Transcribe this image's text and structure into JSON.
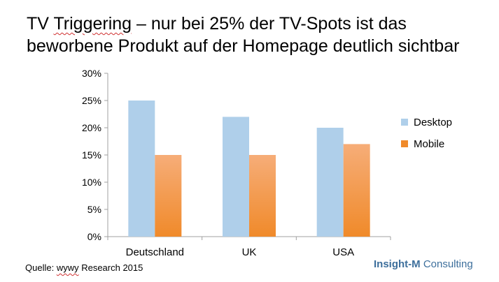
{
  "title": {
    "line1_pre": "TV ",
    "line1_underlined": "Triggering",
    "line1_post": " – nur bei 25% der TV-Spots ist das",
    "line2": "beworbene Produkt auf der Homepage deutlich sichtbar"
  },
  "source": {
    "prefix": "Quelle: ",
    "underlined": "wywy",
    "suffix": " Research 2015"
  },
  "brand": {
    "bold": "Insight-M",
    "rest": " Consulting"
  },
  "colors": {
    "desktop": "#afcfea",
    "mobile_top": "#f6ad78",
    "mobile_bottom": "#f08a2a",
    "axis": "#a0a0a0",
    "brand": "#3d6f9c"
  },
  "chart_data": {
    "type": "bar",
    "categories": [
      "Deutschland",
      "UK",
      "USA"
    ],
    "series": [
      {
        "name": "Desktop",
        "values": [
          25,
          22,
          20
        ]
      },
      {
        "name": "Mobile",
        "values": [
          15,
          15,
          17
        ]
      }
    ],
    "ylim": [
      0,
      30
    ],
    "yticks": [
      0,
      5,
      10,
      15,
      20,
      25,
      30
    ],
    "ytick_labels": [
      "0%",
      "5%",
      "10%",
      "15%",
      "20%",
      "25%",
      "30%"
    ],
    "grid": false,
    "legend": "right"
  }
}
